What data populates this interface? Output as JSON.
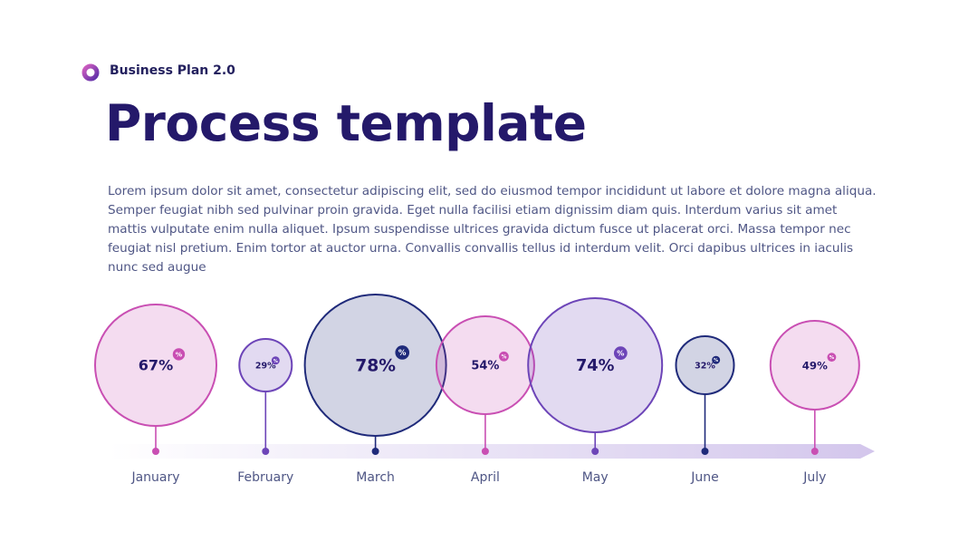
{
  "header": {
    "brand": "Business Plan 2.0",
    "title": "Process template",
    "body": "Lorem ipsum dolor sit amet, consectetur adipiscing elit, sed do eiusmod tempor incididunt ut labore et dolore magna aliqua. Semper feugiat nibh sed pulvinar proin gravida. Eget nulla facilisi etiam dignissim diam quis. Interdum varius sit amet mattis vulputate enim nulla aliquet. Ipsum suspendisse ultrices gravida dictum fusce ut placerat orci. Massa tempor nec feugiat nisl pretium. Enim tortor at auctor urna. Convallis convallis tellus id interdum velit. Orci dapibus ultrices in iaculis nunc sed augue"
  },
  "chart_data": {
    "type": "bubble",
    "categories": [
      "January",
      "February",
      "March",
      "April",
      "May",
      "June",
      "July"
    ],
    "values": [
      67,
      29,
      78,
      54,
      74,
      32,
      49
    ],
    "value_labels": [
      "67%",
      "29%",
      "78%",
      "54%",
      "74%",
      "32%",
      "49%"
    ],
    "badge": "%",
    "colors": [
      "#c94fb3",
      "#6d45b8",
      "#1f2a7a",
      "#c94fb3",
      "#6d45b8",
      "#1f2a7a",
      "#c94fb3"
    ]
  }
}
